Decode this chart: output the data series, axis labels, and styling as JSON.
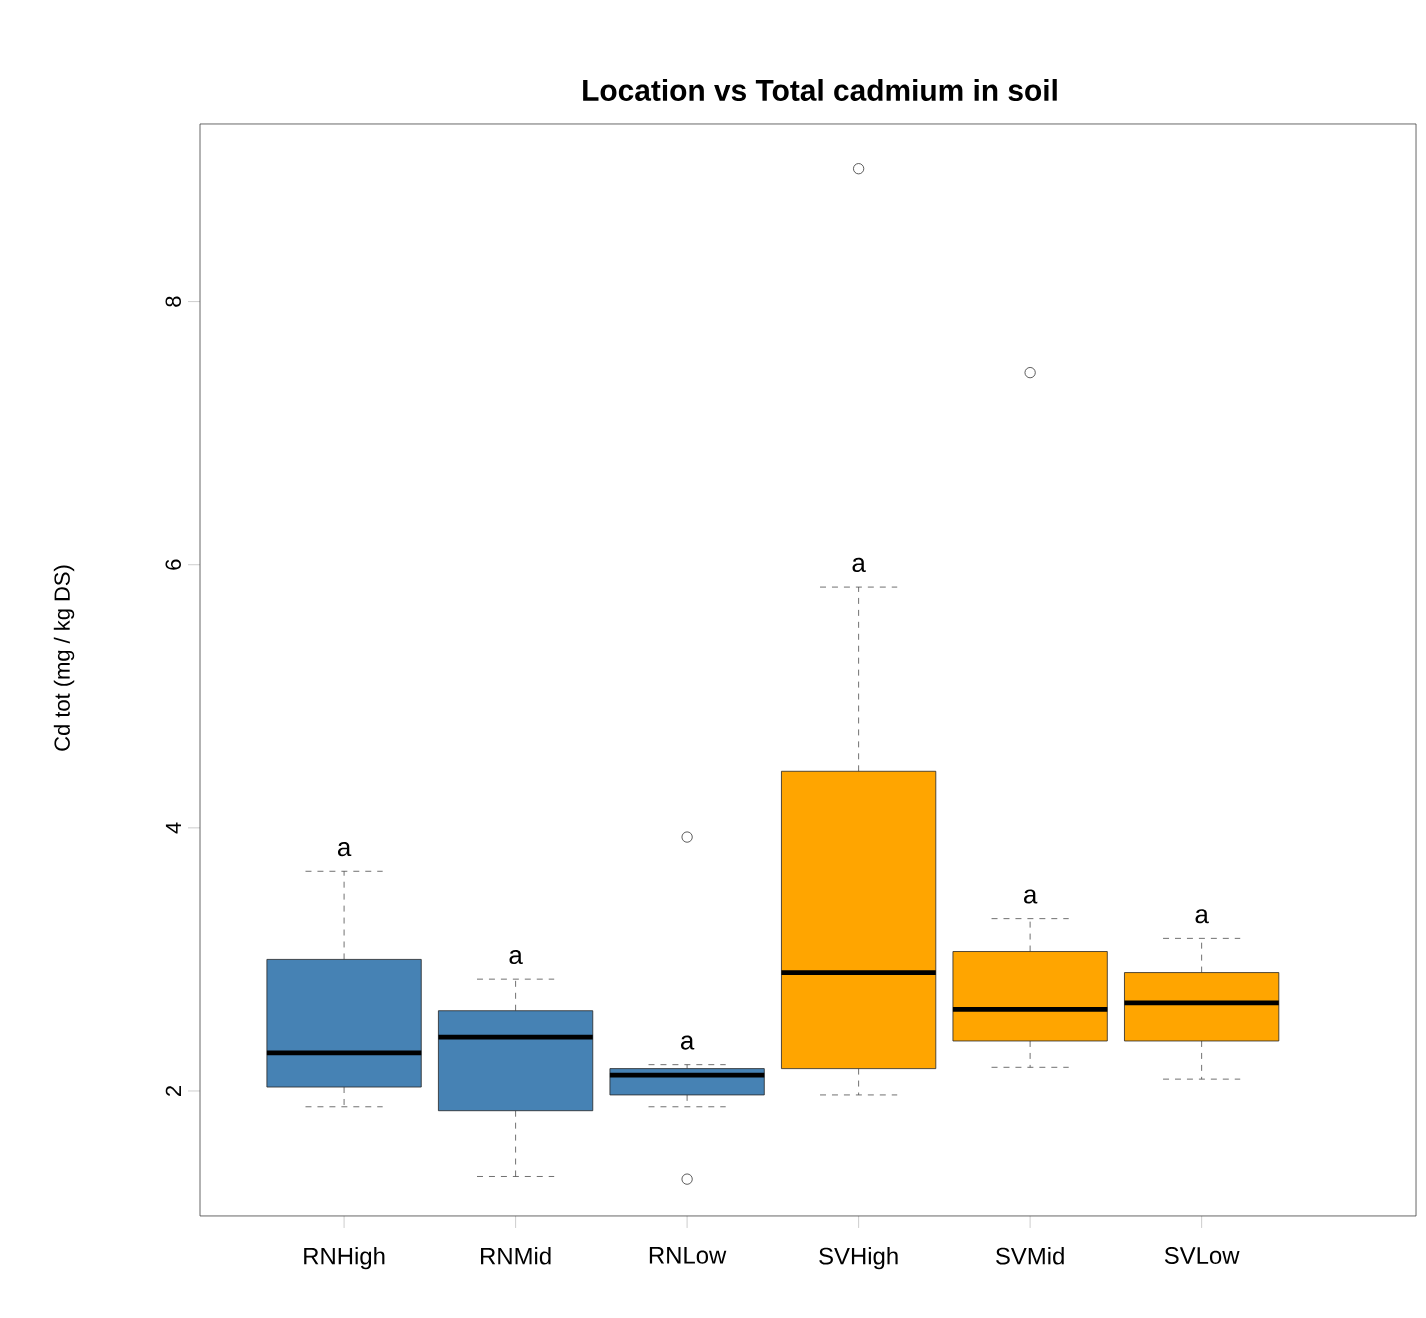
{
  "chart_data": {
    "type": "box",
    "title": "Location vs Total cadmium in soil",
    "ylabel": "Cd tot (mg / kg DS)",
    "categories": [
      "RNHigh",
      "RNMid",
      "RNLow",
      "SVHigh",
      "SVMid",
      "SVLow"
    ],
    "colors": [
      "#4682b4",
      "#4682b4",
      "#4682b4",
      "#ffa500",
      "#ffa500",
      "#ffa500"
    ],
    "boxes": [
      {
        "low": 1.88,
        "q1": 2.03,
        "median": 2.29,
        "q3": 3.0,
        "high": 3.67
      },
      {
        "low": 1.35,
        "q1": 1.85,
        "median": 2.41,
        "q3": 2.61,
        "high": 2.85
      },
      {
        "low": 1.88,
        "q1": 1.97,
        "median": 2.12,
        "q3": 2.17,
        "high": 2.2,
        "outliers": [
          3.93,
          1.33
        ]
      },
      {
        "low": 1.97,
        "q1": 2.17,
        "median": 2.9,
        "q3": 4.43,
        "high": 5.83,
        "outliers": [
          9.01
        ]
      },
      {
        "low": 2.18,
        "q1": 2.38,
        "median": 2.62,
        "q3": 3.06,
        "high": 3.31,
        "outliers": [
          7.46
        ]
      },
      {
        "low": 2.09,
        "q1": 2.38,
        "median": 2.67,
        "q3": 2.9,
        "high": 3.16
      }
    ],
    "annotations": [
      "a",
      "a",
      "a",
      "a",
      "a",
      "a"
    ],
    "ylim": [
      1.05,
      9.35
    ],
    "yticks": [
      2,
      4,
      6,
      8
    ],
    "grid": false
  }
}
